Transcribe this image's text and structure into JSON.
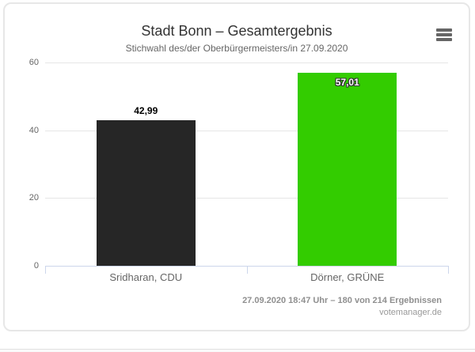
{
  "card": {
    "title": "Stadt Bonn – Gesamtergebnis",
    "subtitle": "Stichwahl des/der Oberbürgermeisters/in 27.09.2020",
    "menu_icon": "hamburger-menu-icon"
  },
  "chart_data": {
    "type": "bar",
    "title": "Stadt Bonn – Gesamtergebnis",
    "subtitle": "Stichwahl des/der Oberbürgermeisters/in 27.09.2020",
    "categories": [
      "Sridharan, CDU",
      "Dörner, GRÜNE"
    ],
    "values": [
      42.99,
      57.01
    ],
    "value_labels": [
      "42,99",
      "57,01"
    ],
    "bar_colors": [
      "#262626",
      "#33cc00"
    ],
    "xlabel": "",
    "ylabel": "",
    "ylim": [
      0,
      60
    ],
    "yticks": [
      0,
      20,
      40,
      60
    ],
    "grid": true,
    "grid_color": "#e6e6e6",
    "axis_color": "#ccd6eb",
    "label_color": "#666666",
    "legend": "none"
  },
  "footer": {
    "status_line": "27.09.2020 18:47 Uhr – 180 von 214 Ergebnissen",
    "credits": "votemanager.de"
  }
}
